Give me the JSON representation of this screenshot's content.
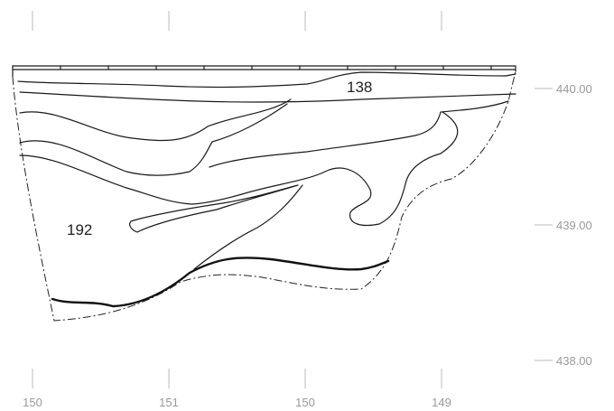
{
  "elevation_labels": [
    "440.00",
    "439.00",
    "438.00"
  ],
  "distance_labels": [
    "150",
    "151",
    "150",
    "149"
  ],
  "layer_labels": [
    "138",
    "192"
  ],
  "colors": {
    "line": "#1a1a1a",
    "scale_text": "#999999",
    "tick": "#bbbbbb",
    "background": "#ffffff"
  }
}
